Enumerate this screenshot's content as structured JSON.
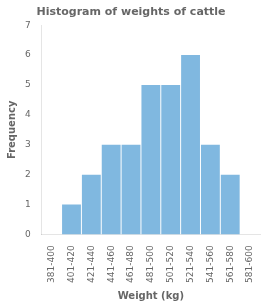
{
  "chart_data": {
    "type": "bar",
    "title": "Histogram of weights of cattle",
    "xlabel": "Weight (kg)",
    "ylabel": "Frequency",
    "categories": [
      "381-400",
      "401-420",
      "421-440",
      "441-460",
      "461-480",
      "481-500",
      "501-520",
      "521-540",
      "541-560",
      "561-580",
      "581-600"
    ],
    "values": [
      0,
      1,
      2,
      3,
      3,
      5,
      5,
      6,
      3,
      2,
      0
    ],
    "color": "#80b8e0",
    "ylim": [
      0,
      7
    ],
    "yticks": [
      0,
      1,
      2,
      3,
      4,
      5,
      6,
      7
    ],
    "grid": false
  }
}
